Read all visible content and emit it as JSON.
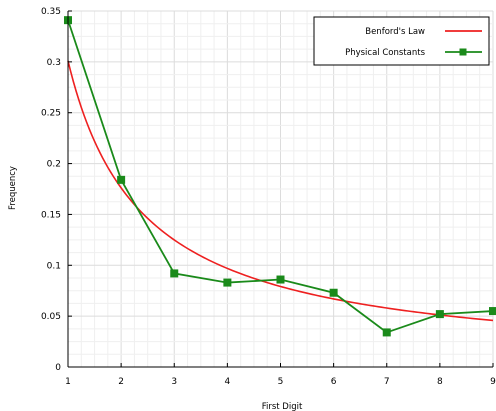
{
  "chart_data": {
    "type": "line",
    "title": "",
    "xlabel": "First Digit",
    "ylabel": "Frequency",
    "xlim": [
      1,
      9
    ],
    "ylim": [
      0,
      0.35
    ],
    "x_ticks": [
      "1",
      "2",
      "3",
      "4",
      "5",
      "6",
      "7",
      "8",
      "9"
    ],
    "y_ticks": [
      "0",
      "0.05",
      "0.1",
      "0.15",
      "0.2",
      "0.25",
      "0.3",
      "0.35"
    ],
    "grid": true,
    "legend_position": "top-right",
    "series": [
      {
        "name": "Benford's Law",
        "color": "#ee2020",
        "style": "smooth-curve",
        "x": [
          1,
          2,
          3,
          4,
          5,
          6,
          7,
          8,
          9
        ],
        "values": [
          0.301,
          0.176,
          0.125,
          0.097,
          0.079,
          0.067,
          0.058,
          0.051,
          0.046
        ]
      },
      {
        "name": "Physical Constants",
        "color": "#1a8a1a",
        "style": "line-square-markers",
        "x": [
          1,
          2,
          3,
          4,
          5,
          6,
          7,
          8,
          9
        ],
        "values": [
          0.341,
          0.184,
          0.092,
          0.083,
          0.086,
          0.073,
          0.034,
          0.052,
          0.055
        ]
      }
    ]
  }
}
